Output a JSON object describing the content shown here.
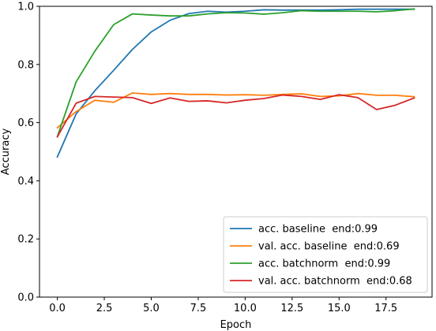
{
  "chart_data": {
    "type": "line",
    "title": "",
    "xlabel": "Epoch",
    "ylabel": "Accuracy",
    "xlim": [
      -0.95,
      19.95
    ],
    "ylim": [
      0.0,
      1.0
    ],
    "xticks": [
      0.0,
      2.5,
      5.0,
      7.5,
      10.0,
      12.5,
      15.0,
      17.5
    ],
    "xtick_labels": [
      "0.0",
      "2.5",
      "5.0",
      "7.5",
      "10.0",
      "12.5",
      "15.0",
      "17.5"
    ],
    "yticks": [
      0.0,
      0.2,
      0.4,
      0.6,
      0.8,
      1.0
    ],
    "ytick_labels": [
      "0.0",
      "0.2",
      "0.4",
      "0.6",
      "0.8",
      "1.0"
    ],
    "grid": false,
    "legend_position": "bottom-right",
    "x": [
      0,
      1,
      2,
      3,
      4,
      5,
      6,
      7,
      8,
      9,
      10,
      11,
      12,
      13,
      14,
      15,
      16,
      17,
      18,
      19
    ],
    "series": [
      {
        "name": "acc. baseline  end:0.99",
        "color": "#1f77b4",
        "values": [
          0.482,
          0.63,
          0.71,
          0.78,
          0.852,
          0.912,
          0.952,
          0.975,
          0.983,
          0.98,
          0.983,
          0.988,
          0.987,
          0.987,
          0.987,
          0.988,
          0.99,
          0.99,
          0.99,
          0.99
        ]
      },
      {
        "name": "val. acc. baseline  end:0.69",
        "color": "#ff7f0e",
        "values": [
          0.582,
          0.638,
          0.677,
          0.67,
          0.702,
          0.697,
          0.7,
          0.697,
          0.697,
          0.695,
          0.696,
          0.694,
          0.697,
          0.699,
          0.69,
          0.692,
          0.7,
          0.694,
          0.694,
          0.689
        ]
      },
      {
        "name": "acc. batchnorm  end:0.99",
        "color": "#2ca02c",
        "values": [
          0.552,
          0.74,
          0.846,
          0.937,
          0.974,
          0.97,
          0.967,
          0.967,
          0.974,
          0.978,
          0.977,
          0.973,
          0.978,
          0.985,
          0.983,
          0.983,
          0.983,
          0.981,
          0.985,
          0.991
        ]
      },
      {
        "name": "val. acc. batchnorm  end:0.68",
        "color": "#d62728",
        "values": [
          0.551,
          0.667,
          0.69,
          0.688,
          0.686,
          0.666,
          0.685,
          0.673,
          0.675,
          0.668,
          0.677,
          0.683,
          0.695,
          0.69,
          0.68,
          0.696,
          0.686,
          0.645,
          0.66,
          0.685
        ]
      }
    ]
  }
}
